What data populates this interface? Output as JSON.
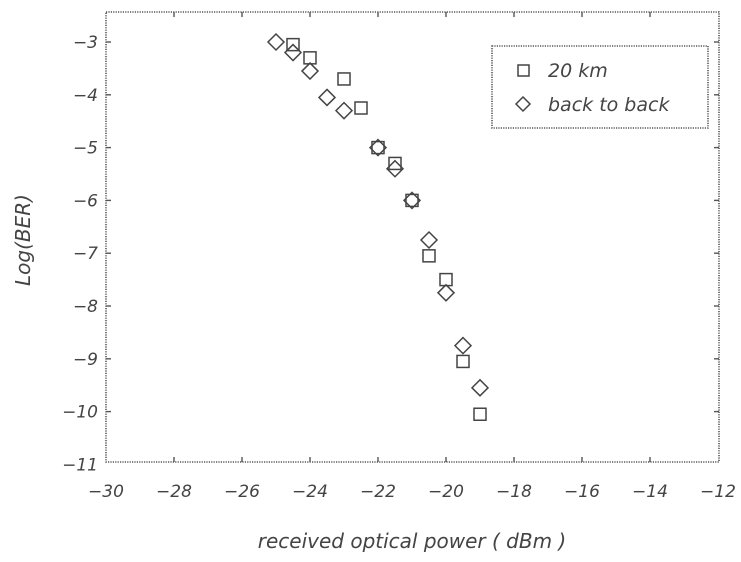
{
  "chart_data": {
    "type": "scatter",
    "xlabel": "received optical power ( dBm )",
    "ylabel": "Log(BER)",
    "xlim": [
      -30,
      -12
    ],
    "ylim": [
      -11,
      -2.5
    ],
    "x_ticks": [
      -30,
      -28,
      -26,
      -24,
      -22,
      -20,
      -18,
      -16,
      -14,
      -12
    ],
    "y_ticks": [
      -3,
      -4,
      -5,
      -6,
      -7,
      -8,
      -9,
      -10,
      -11
    ],
    "grid": false,
    "legend_position": "top-right",
    "series": [
      {
        "name": "20 km",
        "marker": "square",
        "points": [
          [
            -24.5,
            -3.05
          ],
          [
            -24.0,
            -3.3
          ],
          [
            -23.0,
            -3.7
          ],
          [
            -22.5,
            -4.25
          ],
          [
            -22.0,
            -5.0
          ],
          [
            -21.5,
            -5.3
          ],
          [
            -21.0,
            -6.0
          ],
          [
            -20.5,
            -7.05
          ],
          [
            -20.0,
            -7.5
          ],
          [
            -19.5,
            -9.05
          ],
          [
            -19.0,
            -10.05
          ]
        ]
      },
      {
        "name": "back to back",
        "marker": "diamond",
        "points": [
          [
            -25.0,
            -3.0
          ],
          [
            -24.5,
            -3.2
          ],
          [
            -24.0,
            -3.55
          ],
          [
            -23.5,
            -4.05
          ],
          [
            -23.0,
            -4.3
          ],
          [
            -22.0,
            -5.0
          ],
          [
            -21.5,
            -5.4
          ],
          [
            -21.0,
            -6.0
          ],
          [
            -20.5,
            -6.75
          ],
          [
            -20.0,
            -7.75
          ],
          [
            -19.5,
            -8.75
          ],
          [
            -19.0,
            -9.55
          ]
        ]
      }
    ]
  }
}
